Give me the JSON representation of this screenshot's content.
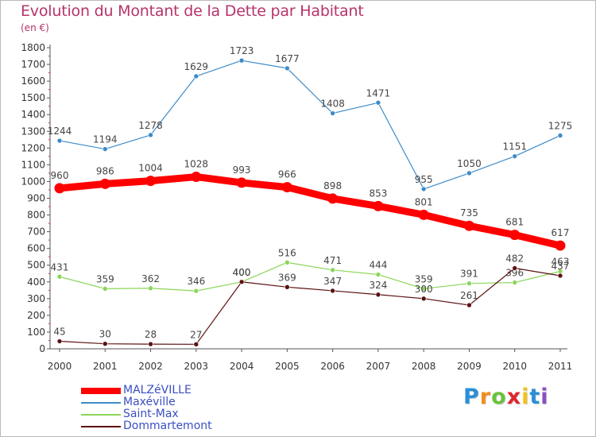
{
  "chart_data": {
    "type": "line",
    "title": "Evolution du Montant de la Dette par Habitant",
    "subtitle": "(en €)",
    "x": [
      "2000",
      "2001",
      "2002",
      "2003",
      "2004",
      "2005",
      "2006",
      "2007",
      "2008",
      "2009",
      "2010",
      "2011"
    ],
    "ylim": [
      0,
      1800
    ],
    "yticks": [
      0,
      100,
      200,
      300,
      400,
      500,
      600,
      700,
      800,
      900,
      1000,
      1100,
      1200,
      1300,
      1400,
      1500,
      1600,
      1700,
      1800
    ],
    "grid": false,
    "legend_position": "bottom-left",
    "series": [
      {
        "name": "MALZéVILLE",
        "color": "#ff0000",
        "values": [
          960,
          986,
          1004,
          1028,
          993,
          966,
          898,
          853,
          801,
          735,
          681,
          617
        ],
        "labels": [
          "960",
          "986",
          "1004",
          "1028",
          "993",
          "966",
          "898",
          "853",
          "801",
          "735",
          "681",
          "617"
        ]
      },
      {
        "name": "Maxéville",
        "color": "#4f9fd6",
        "values": [
          1244,
          1194,
          1278,
          1629,
          1723,
          1677,
          1408,
          1471,
          955,
          1050,
          1151,
          1275
        ],
        "labels": [
          "1244",
          "1194",
          "1278",
          "1629",
          "1723",
          "1677",
          "1408",
          "1471",
          "955",
          "1050",
          "1151",
          "1275"
        ]
      },
      {
        "name": "Saint-Max",
        "color": "#9ee26a",
        "values": [
          431,
          359,
          362,
          346,
          400,
          516,
          471,
          444,
          359,
          391,
          396,
          463
        ],
        "labels": [
          "431",
          "359",
          "362",
          "346",
          "400",
          "516",
          "471",
          "444",
          "359",
          "391",
          "396",
          "463"
        ]
      },
      {
        "name": "Dommartemont",
        "color": "#6b1414",
        "values": [
          45,
          30,
          28,
          27,
          400,
          369,
          347,
          324,
          300,
          261,
          482,
          437
        ],
        "labels": [
          "45",
          "30",
          "28",
          "27",
          "400",
          "369",
          "347",
          "324",
          "300",
          "261",
          "482",
          "437"
        ]
      }
    ]
  },
  "logo": {
    "letters": [
      "P",
      "r",
      "o",
      "x",
      "i",
      "t",
      "i"
    ],
    "colors": [
      "#2a8fd6",
      "#f28c1c",
      "#6ac23c",
      "#e0262e",
      "#f2c21c",
      "#2a8fd6",
      "#8a4fc2"
    ]
  }
}
